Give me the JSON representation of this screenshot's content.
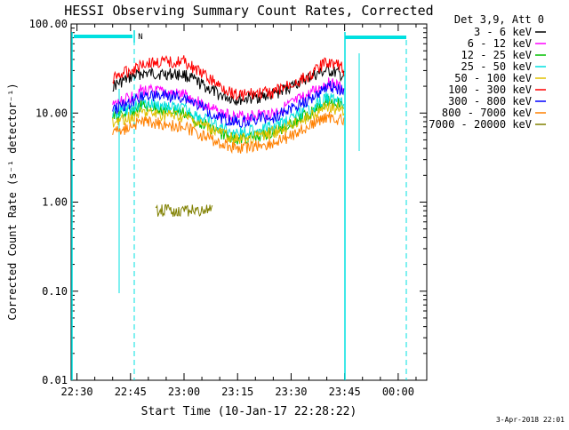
{
  "chart_data": {
    "type": "line",
    "title": "HESSI Observing Summary Count Rates, Corrected",
    "xlabel": "Start Time (10-Jan-17 22:28:22)",
    "ylabel": "Corrected Count Rate (s⁻¹ detector⁻¹)",
    "y_scale": "log",
    "ylim": [
      0.01,
      100.0
    ],
    "y_ticks": [
      {
        "value": 0.01,
        "label": "0.01"
      },
      {
        "value": 0.1,
        "label": "0.10"
      },
      {
        "value": 1.0,
        "label": "1.00"
      },
      {
        "value": 10.0,
        "label": "10.00"
      },
      {
        "value": 100.0,
        "label": "100.00"
      }
    ],
    "x_ticks": [
      "22:30",
      "22:45",
      "23:00",
      "23:15",
      "23:30",
      "23:45",
      "00:00"
    ],
    "xlim": [
      "22:28:22",
      "00:08"
    ],
    "legend_header": "Det 3,9, Att 0",
    "legend_position": "top-right, outside plot",
    "annotation": "N",
    "date_stamp": "3-Apr-2018 22:01",
    "series": [
      {
        "name": "3 - 6 keV",
        "color": "#000000",
        "x": [
          "22:40",
          "22:45",
          "22:48",
          "23:00",
          "23:10",
          "23:15",
          "23:25",
          "23:35",
          "23:40",
          "23:43",
          "23:45"
        ],
        "values": [
          20,
          25,
          28,
          27,
          16,
          14,
          16,
          25,
          30,
          28,
          25
        ]
      },
      {
        "name": "6 - 12 keV",
        "color": "#ff00ff",
        "x": [
          "22:40",
          "22:45",
          "22:48",
          "23:00",
          "23:10",
          "23:15",
          "23:25",
          "23:35",
          "23:40",
          "23:43",
          "23:45"
        ],
        "values": [
          12,
          15,
          18,
          16,
          10,
          9,
          10,
          16,
          22,
          20,
          18
        ]
      },
      {
        "name": "12 - 25 keV",
        "color": "#00c000",
        "x": [
          "22:40",
          "22:45",
          "22:48",
          "23:00",
          "23:10",
          "23:15",
          "23:25",
          "23:35",
          "23:40",
          "23:43",
          "23:45"
        ],
        "values": [
          9,
          10,
          12,
          10,
          6,
          5,
          6,
          10,
          14,
          13,
          11
        ]
      },
      {
        "name": "25 - 50 keV",
        "color": "#00e0e0",
        "x": [
          "22:40",
          "22:45",
          "22:48",
          "23:00",
          "23:10",
          "23:15",
          "23:25",
          "23:35",
          "23:40",
          "23:43",
          "23:45"
        ],
        "values": [
          10,
          11,
          13,
          11,
          7,
          6,
          7,
          11,
          15,
          14,
          12
        ]
      },
      {
        "name": "50 - 100 keV",
        "color": "#e0c000",
        "x": [
          "22:40",
          "22:45",
          "22:48",
          "23:00",
          "23:10",
          "23:15",
          "23:25",
          "23:35",
          "23:40",
          "23:43",
          "23:45"
        ],
        "values": [
          8,
          9,
          10,
          9,
          6,
          5,
          6,
          9,
          12,
          11,
          10
        ]
      },
      {
        "name": "100 - 300 keV",
        "color": "#ff0000",
        "x": [
          "22:40",
          "22:45",
          "22:48",
          "23:00",
          "23:10",
          "23:15",
          "23:25",
          "23:35",
          "23:40",
          "23:43",
          "23:45"
        ],
        "values": [
          25,
          30,
          36,
          38,
          20,
          16,
          17,
          26,
          38,
          35,
          30
        ]
      },
      {
        "name": "300 - 800 keV",
        "color": "#0000ff",
        "x": [
          "22:40",
          "22:45",
          "22:48",
          "23:00",
          "23:10",
          "23:15",
          "23:25",
          "23:35",
          "23:40",
          "23:43",
          "23:45"
        ],
        "values": [
          11,
          13,
          16,
          15,
          9,
          8,
          9,
          14,
          20,
          19,
          17
        ]
      },
      {
        "name": "800 - 7000 keV",
        "color": "#ff8000",
        "x": [
          "22:40",
          "22:45",
          "22:48",
          "23:00",
          "23:10",
          "23:15",
          "23:25",
          "23:35",
          "23:40",
          "23:43",
          "23:45"
        ],
        "values": [
          6,
          7,
          8,
          7,
          4.5,
          4,
          4.5,
          7,
          9,
          8.5,
          8
        ]
      },
      {
        "name": "7000 - 20000 keV",
        "color": "#808000",
        "x": [
          "22:52",
          "23:08"
        ],
        "values": [
          0.8,
          0.8
        ]
      }
    ]
  }
}
